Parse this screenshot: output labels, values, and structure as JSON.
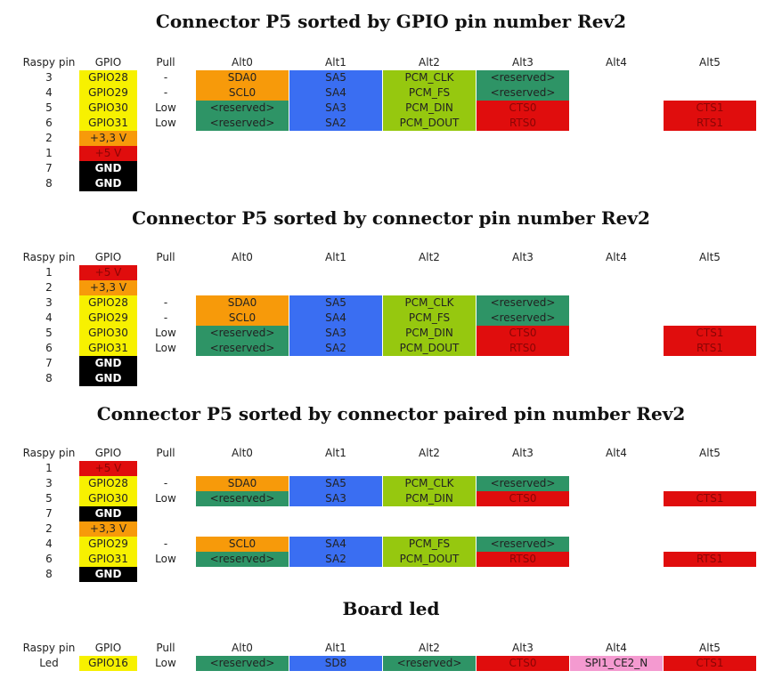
{
  "colors": {
    "yellow": "#f7f100",
    "orange": "#f79a0a",
    "red": "#e00d0d",
    "black": "#000000",
    "blue": "#3a6ef2",
    "lime": "#96c80f",
    "green": "#2e9466",
    "pink": "#f49ad0"
  },
  "headers": [
    "Raspy pin",
    "GPIO",
    "Pull",
    "Alt0",
    "Alt1",
    "Alt2",
    "Alt3",
    "Alt4",
    "Alt5"
  ],
  "tables": [
    {
      "title": "Connector P5 sorted by GPIO pin number Rev2",
      "rows": [
        [
          "3",
          "GPIO28",
          "-",
          "SDA0",
          "SA5",
          "PCM_CLK",
          "<reserved>",
          "",
          ""
        ],
        [
          "4",
          "GPIO29",
          "-",
          "SCL0",
          "SA4",
          "PCM_FS",
          "<reserved>",
          "",
          ""
        ],
        [
          "5",
          "GPIO30",
          "Low",
          "<reserved>",
          "SA3",
          "PCM_DIN",
          "CTS0",
          "",
          "CTS1"
        ],
        [
          "6",
          "GPIO31",
          "Low",
          "<reserved>",
          "SA2",
          "PCM_DOUT",
          "RTS0",
          "",
          "RTS1"
        ],
        [
          "2",
          "+3,3 V",
          "",
          "",
          "",
          "",
          "",
          "",
          ""
        ],
        [
          "1",
          "+5 V",
          "",
          "",
          "",
          "",
          "",
          "",
          ""
        ],
        [
          "7",
          "GND",
          "",
          "",
          "",
          "",
          "",
          "",
          ""
        ],
        [
          "8",
          "GND",
          "",
          "",
          "",
          "",
          "",
          "",
          ""
        ]
      ]
    },
    {
      "title": "Connector P5 sorted by connector pin number Rev2",
      "rows": [
        [
          "1",
          "+5 V",
          "",
          "",
          "",
          "",
          "",
          "",
          ""
        ],
        [
          "2",
          "+3,3 V",
          "",
          "",
          "",
          "",
          "",
          "",
          ""
        ],
        [
          "3",
          "GPIO28",
          "-",
          "SDA0",
          "SA5",
          "PCM_CLK",
          "<reserved>",
          "",
          ""
        ],
        [
          "4",
          "GPIO29",
          "-",
          "SCL0",
          "SA4",
          "PCM_FS",
          "<reserved>",
          "",
          ""
        ],
        [
          "5",
          "GPIO30",
          "Low",
          "<reserved>",
          "SA3",
          "PCM_DIN",
          "CTS0",
          "",
          "CTS1"
        ],
        [
          "6",
          "GPIO31",
          "Low",
          "<reserved>",
          "SA2",
          "PCM_DOUT",
          "RTS0",
          "",
          "RTS1"
        ],
        [
          "7",
          "GND",
          "",
          "",
          "",
          "",
          "",
          "",
          ""
        ],
        [
          "8",
          "GND",
          "",
          "",
          "",
          "",
          "",
          "",
          ""
        ]
      ]
    },
    {
      "title": "Connector P5 sorted by connector paired pin number Rev2",
      "rows": [
        [
          "1",
          "+5 V",
          "",
          "",
          "",
          "",
          "",
          "",
          ""
        ],
        [
          "3",
          "GPIO28",
          "-",
          "SDA0",
          "SA5",
          "PCM_CLK",
          "<reserved>",
          "",
          ""
        ],
        [
          "5",
          "GPIO30",
          "Low",
          "<reserved>",
          "SA3",
          "PCM_DIN",
          "CTS0",
          "",
          "CTS1"
        ],
        [
          "7",
          "GND",
          "",
          "",
          "",
          "",
          "",
          "",
          ""
        ],
        [
          "2",
          "+3,3 V",
          "",
          "",
          "",
          "",
          "",
          "",
          ""
        ],
        [
          "4",
          "GPIO29",
          "-",
          "SCL0",
          "SA4",
          "PCM_FS",
          "<reserved>",
          "",
          ""
        ],
        [
          "6",
          "GPIO31",
          "Low",
          "<reserved>",
          "SA2",
          "PCM_DOUT",
          "RTS0",
          "",
          "RTS1"
        ],
        [
          "8",
          "GND",
          "",
          "",
          "",
          "",
          "",
          "",
          ""
        ]
      ]
    },
    {
      "title": "Board led",
      "rows": [
        [
          "Led",
          "GPIO16",
          "Low",
          "<reserved>",
          "SD8",
          "<reserved>",
          "CTS0",
          "SPI1_CE2_N",
          "CTS1"
        ]
      ]
    }
  ]
}
